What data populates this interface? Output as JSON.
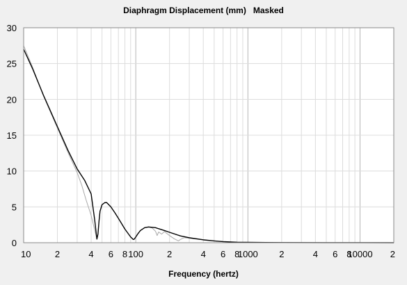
{
  "chart_data": {
    "type": "line",
    "title": "Diaphragm Displacement (mm)",
    "title_suffix": "Masked",
    "xlabel": "Frequency (hertz)",
    "ylabel": "",
    "x_scale": "log",
    "xlim": [
      10,
      20000
    ],
    "ylim": [
      0,
      30
    ],
    "grid": true,
    "y_ticks": [
      "0",
      "5",
      "10",
      "15",
      "20",
      "25",
      "30"
    ],
    "x_ticks": [
      {
        "value": 10,
        "label": "10"
      },
      {
        "value": 20,
        "label": "2"
      },
      {
        "value": 40,
        "label": "4"
      },
      {
        "value": 60,
        "label": "6"
      },
      {
        "value": 80,
        "label": "8"
      },
      {
        "value": 100,
        "label": "100"
      },
      {
        "value": 200,
        "label": "2"
      },
      {
        "value": 400,
        "label": "4"
      },
      {
        "value": 600,
        "label": "6"
      },
      {
        "value": 800,
        "label": "8"
      },
      {
        "value": 1000,
        "label": "1000"
      },
      {
        "value": 2000,
        "label": "2"
      },
      {
        "value": 4000,
        "label": "4"
      },
      {
        "value": 6000,
        "label": "6"
      },
      {
        "value": 8000,
        "label": "8"
      },
      {
        "value": 10000,
        "label": "10000"
      },
      {
        "value": 20000,
        "label": "2"
      }
    ],
    "series": [
      {
        "color": "#000000",
        "x": [
          10,
          12,
          15,
          20,
          25,
          30,
          35,
          40,
          43,
          45,
          46,
          47,
          48,
          50,
          53,
          55,
          60,
          65,
          70,
          80,
          90,
          95,
          97,
          100,
          105,
          110,
          120,
          130,
          140,
          150,
          160,
          180,
          200,
          250,
          300,
          400,
          500,
          600,
          800,
          1000,
          2000,
          5000,
          10000,
          20000
        ],
        "y": [
          27,
          24.3,
          20.6,
          16.2,
          12.8,
          10.3,
          8.7,
          6.8,
          3.2,
          0.5,
          1.2,
          3.0,
          4.4,
          5.3,
          5.6,
          5.6,
          5.0,
          4.2,
          3.4,
          1.9,
          0.8,
          0.45,
          0.5,
          0.8,
          1.3,
          1.7,
          2.1,
          2.2,
          2.15,
          2.1,
          1.95,
          1.7,
          1.45,
          0.95,
          0.7,
          0.4,
          0.25,
          0.15,
          0.07,
          0.05,
          0.02,
          0.01,
          0.01,
          0
        ]
      },
      {
        "color": "#a8a8a8",
        "x": [
          10,
          12,
          15,
          20,
          25,
          30,
          33,
          36,
          40,
          43,
          45,
          46,
          47,
          48,
          50,
          53,
          55,
          60,
          65,
          70,
          80,
          90,
          95,
          97,
          100,
          105,
          110,
          120,
          130,
          140,
          150,
          155,
          160,
          170,
          180,
          200,
          220,
          240,
          250,
          270,
          300,
          400,
          500,
          600,
          800,
          1000,
          2000,
          5000,
          10000,
          20000
        ],
        "y": [
          27.5,
          24.5,
          20.5,
          16.0,
          12.5,
          9.8,
          8.0,
          6.0,
          3.8,
          1.8,
          0.5,
          1.2,
          3.0,
          4.4,
          5.3,
          5.6,
          5.6,
          5.0,
          4.2,
          3.4,
          1.9,
          0.8,
          0.45,
          0.5,
          0.8,
          1.3,
          1.7,
          2.1,
          2.2,
          2.05,
          1.6,
          1.0,
          1.5,
          1.2,
          1.55,
          1.0,
          0.55,
          0.25,
          0.45,
          0.7,
          0.6,
          0.4,
          0.25,
          0.15,
          0.07,
          0.05,
          0.02,
          0.01,
          0.01,
          0
        ]
      }
    ]
  }
}
